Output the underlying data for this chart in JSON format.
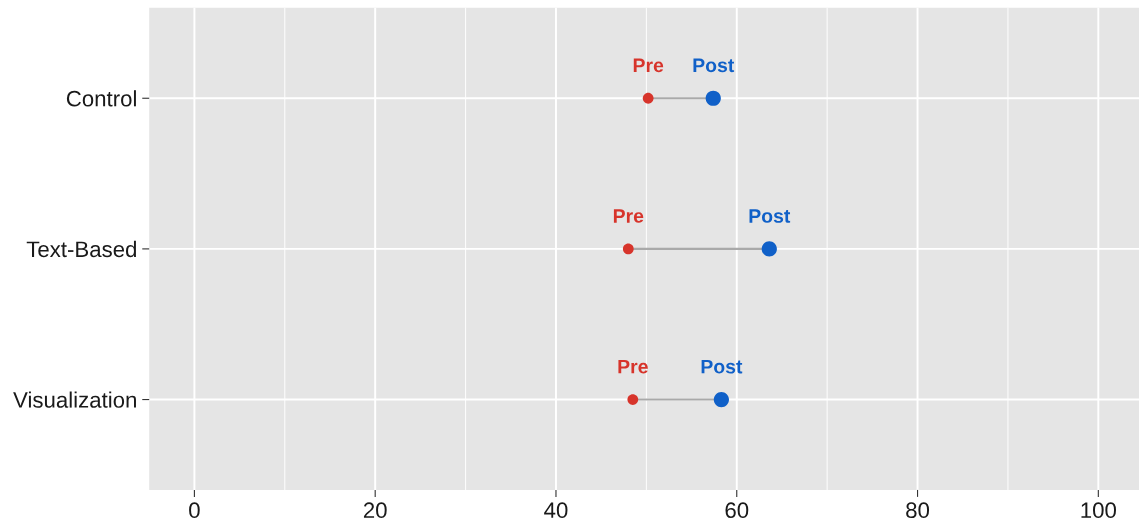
{
  "chart_data": {
    "type": "scatter",
    "orientation": "horizontal",
    "categories": [
      "Control",
      "Text-Based",
      "Visualization"
    ],
    "series": [
      {
        "name": "Pre",
        "color": "#d7342b",
        "values": [
          50.2,
          48.0,
          48.5
        ]
      },
      {
        "name": "Post",
        "color": "#1060c8",
        "values": [
          57.4,
          63.6,
          58.3
        ]
      }
    ],
    "xlim": [
      -5,
      104.5
    ],
    "xticks": [
      0,
      20,
      40,
      60,
      80,
      100,
      {
        "value": 10,
        "label": null
      },
      {
        "value": 30,
        "label": null
      },
      {
        "value": 50,
        "label": null
      },
      {
        "value": 70,
        "label": null
      },
      {
        "value": 90,
        "label": null
      }
    ],
    "grid": true,
    "marker": "circle"
  }
}
